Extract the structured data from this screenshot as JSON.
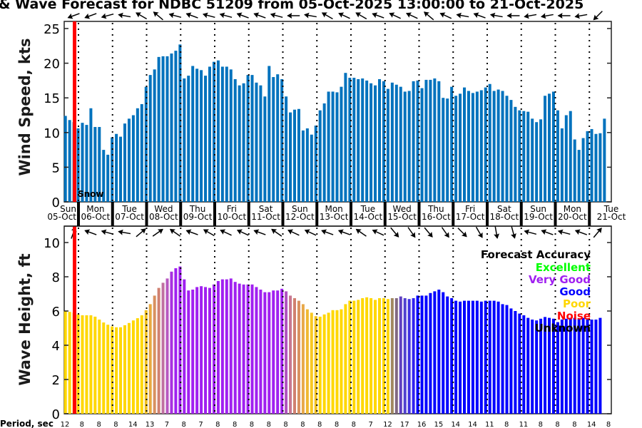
{
  "chart_data": [
    {
      "type": "bar",
      "title": "& Wave Forecast for NDBC 51209 from 05-Oct-2025 13:00:00 to 21-Oct-2025",
      "ylabel": "Wind Speed, kts",
      "ylim": [
        0,
        26
      ],
      "yticks": [
        "0",
        "5",
        "10",
        "15",
        "20",
        "25"
      ],
      "step_hours": 3,
      "bar_color": "#0072BD",
      "values": [
        12.4,
        11.8,
        11.5,
        10.6,
        11.4,
        11.1,
        13.5,
        10.8,
        10.8,
        7.5,
        6.8,
        9.3,
        9.8,
        9.4,
        11.3,
        12.0,
        12.5,
        13.5,
        14.1,
        16.6,
        18.3,
        19.1,
        20.9,
        21.0,
        21.0,
        21.4,
        21.8,
        22.7,
        17.8,
        18.2,
        19.6,
        19.2,
        19.0,
        18.2,
        19.5,
        20.2,
        20.4,
        19.5,
        19.5,
        19.1,
        17.7,
        16.8,
        17.1,
        18.3,
        18.3,
        17.2,
        16.8,
        15.2,
        19.6,
        18.0,
        18.4,
        17.7,
        15.2,
        12.9,
        13.3,
        13.4,
        10.3,
        10.6,
        9.7,
        11.0,
        13.2,
        14.2,
        15.9,
        15.9,
        15.8,
        16.6,
        18.6,
        17.9,
        17.9,
        17.7,
        17.8,
        17.5,
        17.1,
        16.8,
        17.7,
        17.4,
        16.3,
        17.2,
        16.9,
        16.6,
        15.9,
        16.0,
        17.4,
        17.5,
        16.4,
        17.6,
        17.6,
        17.8,
        17.4,
        15.0,
        14.9,
        16.6,
        15.3,
        15.6,
        16.5,
        16.0,
        15.7,
        15.9,
        16.1,
        16.5,
        17.0,
        16.0,
        16.2,
        16.0,
        15.3,
        14.7,
        13.7,
        13.2,
        13.1,
        13.0,
        12.0,
        11.5,
        11.9,
        15.3,
        15.6,
        15.9,
        13.2,
        10.6,
        12.5,
        13.1,
        9.0,
        7.5,
        9.2,
        10.2,
        10.5,
        9.8,
        9.9,
        12.0
      ],
      "direction_arrows_deg": [
        160,
        160,
        165,
        190,
        210,
        220,
        195,
        200,
        195,
        195,
        200,
        200,
        195,
        180,
        190,
        210,
        205,
        210,
        200,
        205,
        205,
        220,
        205,
        190,
        200,
        190,
        180,
        170,
        170,
        180,
        170,
        135
      ]
    },
    {
      "type": "bar",
      "ylabel": "Wave Height, ft",
      "ylim": [
        0,
        11
      ],
      "yticks": [
        "0",
        "2",
        "4",
        "6",
        "8",
        "10"
      ],
      "step_hours": 3,
      "values": [
        6.0,
        5.95,
        5.9,
        5.8,
        5.75,
        5.75,
        5.75,
        5.67,
        5.5,
        5.33,
        5.2,
        5.1,
        5.05,
        5.05,
        5.17,
        5.3,
        5.45,
        5.58,
        5.75,
        6.05,
        6.4,
        6.9,
        7.35,
        7.65,
        7.9,
        8.3,
        8.5,
        8.6,
        7.85,
        7.2,
        7.25,
        7.4,
        7.45,
        7.4,
        7.35,
        7.55,
        7.75,
        7.85,
        7.85,
        7.9,
        7.7,
        7.6,
        7.55,
        7.55,
        7.55,
        7.4,
        7.25,
        7.1,
        7.1,
        7.2,
        7.2,
        7.3,
        7.15,
        6.9,
        6.75,
        6.6,
        6.4,
        6.1,
        5.9,
        5.7,
        5.67,
        5.8,
        5.9,
        6.05,
        6.05,
        6.1,
        6.4,
        6.6,
        6.6,
        6.65,
        6.75,
        6.8,
        6.75,
        6.65,
        6.75,
        6.75,
        6.7,
        6.75,
        6.75,
        6.85,
        6.75,
        6.7,
        6.75,
        6.9,
        6.9,
        6.9,
        7.05,
        7.15,
        7.25,
        7.1,
        6.85,
        6.75,
        6.6,
        6.55,
        6.6,
        6.6,
        6.6,
        6.6,
        6.55,
        6.6,
        6.6,
        6.6,
        6.55,
        6.4,
        6.35,
        6.15,
        6.0,
        5.85,
        5.75,
        5.6,
        5.5,
        5.45,
        5.55,
        5.65,
        5.6,
        5.55,
        5.35,
        5.5,
        5.55,
        5.6,
        5.6,
        5.55,
        5.6,
        5.5,
        5.5,
        5.5,
        5.6
      ],
      "colors_by_segment": [
        {
          "from": 0,
          "to": 18,
          "color": "#FFD700"
        },
        {
          "from": 19,
          "to": 19,
          "color": "#F0C020"
        },
        {
          "from": 20,
          "to": 20,
          "color": "#E8A840"
        },
        {
          "from": 21,
          "to": 21,
          "color": "#D89060"
        },
        {
          "from": 22,
          "to": 22,
          "color": "#D08070"
        },
        {
          "from": 23,
          "to": 23,
          "color": "#C070A0"
        },
        {
          "from": 24,
          "to": 24,
          "color": "#B858C0"
        },
        {
          "from": 25,
          "to": 25,
          "color": "#A830E0"
        },
        {
          "from": 26,
          "to": 51,
          "color": "#A020F0"
        },
        {
          "from": 52,
          "to": 52,
          "color": "#B050C0"
        },
        {
          "from": 53,
          "to": 53,
          "color": "#C87890"
        },
        {
          "from": 54,
          "to": 54,
          "color": "#D08070"
        },
        {
          "from": 55,
          "to": 55,
          "color": "#D89060"
        },
        {
          "from": 56,
          "to": 56,
          "color": "#E8A848"
        },
        {
          "from": 57,
          "to": 57,
          "color": "#F0B830"
        },
        {
          "from": 58,
          "to": 58,
          "color": "#F8C820"
        },
        {
          "from": 59,
          "to": 59,
          "color": "#F0C020"
        },
        {
          "from": 60,
          "to": 76,
          "color": "#FFD700"
        },
        {
          "from": 77,
          "to": 77,
          "color": "#A08860"
        },
        {
          "from": 78,
          "to": 78,
          "color": "#806880"
        },
        {
          "from": 79,
          "to": 79,
          "color": "#6040C0"
        },
        {
          "from": 80,
          "to": 80,
          "color": "#5040D0"
        },
        {
          "from": 81,
          "to": 81,
          "color": "#4030E0"
        },
        {
          "from": 82,
          "to": 82,
          "color": "#3020F0"
        },
        {
          "from": 83,
          "to": 128,
          "color": "#0000FF"
        }
      ],
      "direction_arrows_deg": [
        290,
        200,
        195,
        190,
        320,
        325,
        215,
        200,
        210,
        205,
        205,
        200,
        215,
        205,
        205,
        200,
        200,
        215,
        205,
        50,
        55,
        50,
        55,
        45,
        60,
        80,
        75,
        195,
        200,
        195,
        200,
        310
      ],
      "legend": {
        "title": "Forecast Accuracy",
        "placement": "top-right",
        "entries": [
          {
            "label": "Excellent",
            "color": "#00FF00"
          },
          {
            "label": "Very Good",
            "color": "#A020F0"
          },
          {
            "label": "Good",
            "color": "#0000FF"
          },
          {
            "label": "Poor",
            "color": "#FFD700"
          },
          {
            "label": "Noise",
            "color": "#FF0000"
          },
          {
            "label": "Unknown",
            "color": "#000000"
          }
        ]
      }
    }
  ],
  "days": [
    {
      "name": "Sun",
      "date": "05-Oct"
    },
    {
      "name": "Mon",
      "date": "06-Oct"
    },
    {
      "name": "Tue",
      "date": "07-Oct"
    },
    {
      "name": "Wed",
      "date": "08-Oct"
    },
    {
      "name": "Thu",
      "date": "09-Oct"
    },
    {
      "name": "Fri",
      "date": "10-Oct"
    },
    {
      "name": "Sat",
      "date": "11-Oct"
    },
    {
      "name": "Sun",
      "date": "12-Oct"
    },
    {
      "name": "Mon",
      "date": "13-Oct"
    },
    {
      "name": "Tue",
      "date": "14-Oct"
    },
    {
      "name": "Wed",
      "date": "15-Oct"
    },
    {
      "name": "Thu",
      "date": "16-Oct"
    },
    {
      "name": "Fri",
      "date": "17-Oct"
    },
    {
      "name": "Sat",
      "date": "18-Oct"
    },
    {
      "name": "Sun",
      "date": "19-Oct"
    },
    {
      "name": "Mon",
      "date": "20-Oct"
    },
    {
      "name": "Tue",
      "date": "21-Oct"
    }
  ],
  "now_marker": {
    "label": "Snow",
    "color": "#FF0000"
  },
  "period": {
    "label": "Period, sec",
    "values": [
      "12",
      "8",
      "8",
      "8",
      "14",
      "13",
      "7",
      "8",
      "7",
      "8",
      "8",
      "8",
      "8",
      "8",
      "8",
      "8",
      "8",
      "8",
      "7",
      "12",
      "17",
      "16",
      "15",
      "14",
      "14",
      "11",
      "8",
      "11",
      "8",
      "8",
      "8",
      "14",
      "8"
    ]
  }
}
